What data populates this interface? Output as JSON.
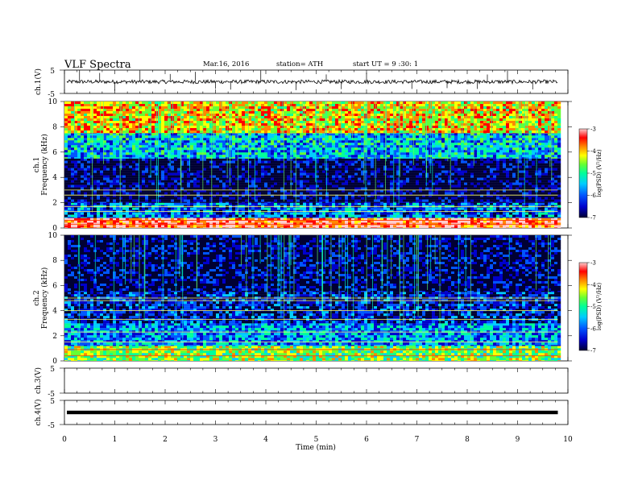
{
  "header": {
    "title": "VLF  Spectra",
    "date": "Mar.16, 2016",
    "station": "station= ATH",
    "start": "start  UT  =   9  :30: 1"
  },
  "chart_data": [
    {
      "type": "line",
      "name": "ch1_waveform",
      "ylabel": "ch.1(V)",
      "ylim": [
        -5,
        5
      ],
      "yticks": [
        "5",
        "-5"
      ],
      "x_range_min": [
        0,
        9.8
      ],
      "baseline_value": 0,
      "spikes_min": [
        0.3,
        0.7,
        1.0,
        1.5,
        2.1,
        2.6,
        3.0,
        3.3,
        3.9,
        4.6,
        5.2,
        5.5,
        6.0,
        6.9,
        7.6,
        8.2,
        8.4,
        8.8,
        9.3
      ]
    },
    {
      "type": "heatmap",
      "name": "ch1_spectrogram",
      "ylabel": "ch.1\nFrequency  (kHz)",
      "ylim": [
        0,
        10
      ],
      "yticks": [
        "0",
        "2",
        "4",
        "6",
        "8",
        "10"
      ],
      "colorbar": {
        "label": "log(PSD) (V²/Hz)",
        "range": [
          -7,
          -3
        ],
        "ticks": [
          "-3",
          "-4",
          "-5",
          "-6",
          "-7"
        ]
      },
      "bands_khz": [
        {
          "from": 0,
          "to": 0.8,
          "level": -3.5
        },
        {
          "from": 0.8,
          "to": 2.0,
          "level": -6.0
        },
        {
          "from": 2.0,
          "to": 5.5,
          "level": -6.8
        },
        {
          "from": 5.5,
          "to": 7.5,
          "level": -5.6
        },
        {
          "from": 7.5,
          "to": 10,
          "level": -4.3
        }
      ],
      "lines_khz": [
        3.0,
        2.6,
        1.7,
        1.3,
        0.6,
        0.3
      ]
    },
    {
      "type": "heatmap",
      "name": "ch2_spectrogram",
      "ylabel": "ch.2\nFrequency  (kHz)",
      "ylim": [
        0,
        10
      ],
      "yticks": [
        "0",
        "2",
        "4",
        "6",
        "8",
        "10"
      ],
      "colorbar": {
        "label": "log(PSD) (V²/Hz)",
        "range": [
          -7,
          -3
        ],
        "ticks": [
          "-3",
          "-4",
          "-5",
          "-6",
          "-7"
        ]
      },
      "bands_khz": [
        {
          "from": 0,
          "to": 1.2,
          "level": -4.8
        },
        {
          "from": 1.2,
          "to": 3.0,
          "level": -5.8
        },
        {
          "from": 3.0,
          "to": 5.5,
          "level": -6.4
        },
        {
          "from": 5.5,
          "to": 10,
          "level": -6.7
        }
      ],
      "lines_khz": [
        5.0,
        4.8,
        4.0,
        3.3,
        2.3,
        1.5,
        0.9,
        0.4
      ]
    },
    {
      "type": "line",
      "name": "ch3_waveform",
      "ylabel": "ch.3(V)",
      "ylim": [
        -5,
        5
      ],
      "yticks": [
        "5",
        "-5"
      ]
    },
    {
      "type": "line",
      "name": "ch4_waveform",
      "ylabel": "ch.4(V)",
      "ylim": [
        -5,
        5
      ],
      "yticks": [
        "5",
        "-5"
      ],
      "baseline_value": 0
    }
  ],
  "x_axis": {
    "label": "Time  (min)",
    "range": [
      0,
      10
    ],
    "ticks": [
      "0",
      "1",
      "2",
      "3",
      "4",
      "5",
      "6",
      "7",
      "8",
      "9",
      "10"
    ]
  },
  "colors": {
    "colormap": [
      "#000033",
      "#0000cc",
      "#0055ff",
      "#00ccff",
      "#00ff99",
      "#66ff33",
      "#ffff00",
      "#ff8800",
      "#ff0000",
      "#ffcccc"
    ]
  }
}
